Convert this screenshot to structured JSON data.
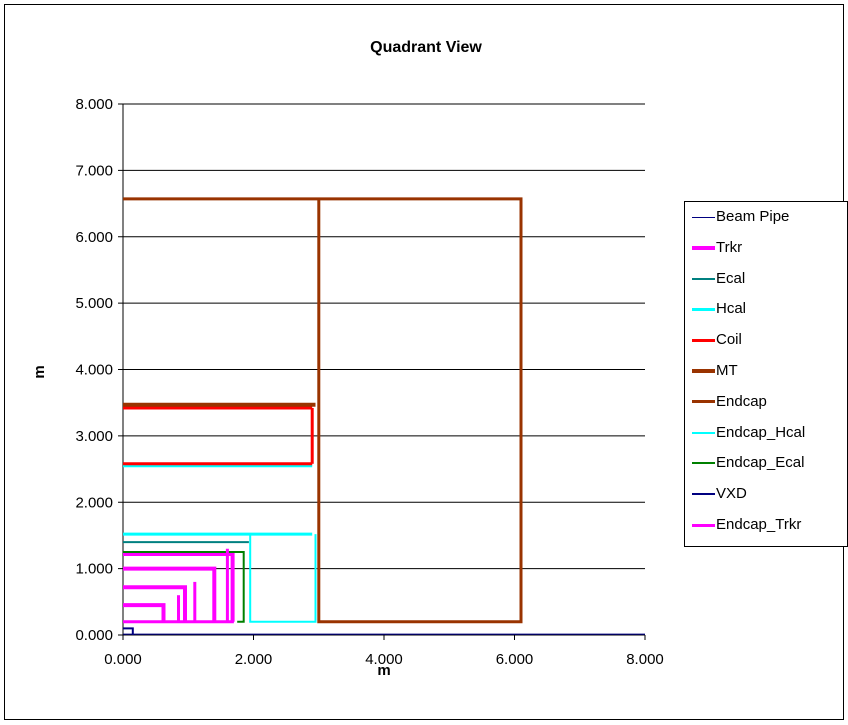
{
  "chart_data": {
    "type": "scatter",
    "title": "Quadrant View",
    "xlabel": "m",
    "ylabel": "m",
    "xlim": [
      0,
      8
    ],
    "ylim": [
      0,
      8
    ],
    "x_ticks": [
      "0.000",
      "2.000",
      "4.000",
      "6.000",
      "8.000"
    ],
    "y_ticks": [
      "0.000",
      "1.000",
      "2.000",
      "3.000",
      "4.000",
      "5.000",
      "6.000",
      "7.000",
      "8.000"
    ],
    "gridlines": "horizontal",
    "legend_position": "right",
    "series": [
      {
        "name": "Beam Pipe",
        "color": "#000080",
        "width": 1.2,
        "paths": [
          [
            [
              0,
              0.012
            ],
            [
              8,
              0.012
            ]
          ]
        ]
      },
      {
        "name": "Trkr",
        "color": "#ff00ff",
        "width": 4,
        "paths": [
          [
            [
              0,
              0.45
            ],
            [
              0.62,
              0.45
            ],
            [
              0.62,
              0.2
            ]
          ],
          [
            [
              0,
              0.72
            ],
            [
              0.95,
              0.72
            ],
            [
              0.95,
              0.2
            ]
          ],
          [
            [
              0,
              1.0
            ],
            [
              1.4,
              1.0
            ],
            [
              1.4,
              0.2
            ]
          ],
          [
            [
              0,
              1.22
            ],
            [
              1.68,
              1.22
            ],
            [
              1.68,
              0.2
            ]
          ]
        ]
      },
      {
        "name": "Ecal",
        "color": "#008080",
        "width": 2,
        "paths": [
          [
            [
              0,
              1.4
            ],
            [
              1.93,
              1.4
            ]
          ]
        ]
      },
      {
        "name": "Hcal",
        "color": "#00ffff",
        "width": 3,
        "paths": [
          [
            [
              0,
              1.52
            ],
            [
              2.9,
              1.52
            ]
          ],
          [
            [
              0,
              2.55
            ],
            [
              2.9,
              2.55
            ]
          ]
        ]
      },
      {
        "name": "Coil",
        "color": "#ff0000",
        "width": 3,
        "paths": [
          [
            [
              0,
              2.58
            ],
            [
              2.9,
              2.58
            ]
          ],
          [
            [
              0,
              3.42
            ],
            [
              2.9,
              3.42
            ]
          ],
          [
            [
              2.9,
              2.58
            ],
            [
              2.9,
              3.42
            ]
          ]
        ]
      },
      {
        "name": "MT",
        "color": "#993300",
        "width": 4,
        "paths": [
          [
            [
              0,
              3.47
            ],
            [
              2.95,
              3.47
            ]
          ]
        ]
      },
      {
        "name": "Endcap",
        "color": "#993300",
        "width": 3,
        "paths": [
          [
            [
              0,
              6.57
            ],
            [
              6.1,
              6.57
            ],
            [
              6.1,
              0.2
            ],
            [
              3.0,
              0.2
            ],
            [
              3.0,
              6.57
            ]
          ]
        ]
      },
      {
        "name": "Endcap_Hcal",
        "color": "#00ffff",
        "width": 2,
        "paths": [
          [
            [
              1.95,
              1.52
            ],
            [
              1.95,
              0.2
            ],
            [
              2.95,
              0.2
            ],
            [
              2.95,
              1.52
            ]
          ]
        ]
      },
      {
        "name": "Endcap_Ecal",
        "color": "#008000",
        "width": 2,
        "paths": [
          [
            [
              0,
              1.25
            ],
            [
              1.85,
              1.25
            ],
            [
              1.85,
              0.2
            ],
            [
              1.75,
              0.2
            ]
          ]
        ]
      },
      {
        "name": "VXD",
        "color": "#000080",
        "width": 2,
        "paths": [
          [
            [
              0,
              0.1
            ],
            [
              0.15,
              0.1
            ],
            [
              0.15,
              0.0
            ]
          ]
        ]
      },
      {
        "name": "Endcap_Trkr",
        "color": "#ff00ff",
        "width": 3,
        "paths": [
          [
            [
              0,
              0.2
            ],
            [
              1.7,
              0.2
            ]
          ],
          [
            [
              0.85,
              0.2
            ],
            [
              0.85,
              0.6
            ]
          ],
          [
            [
              1.1,
              0.2
            ],
            [
              1.1,
              0.8
            ]
          ],
          [
            [
              1.6,
              0.2
            ],
            [
              1.6,
              1.3
            ]
          ]
        ]
      }
    ]
  }
}
